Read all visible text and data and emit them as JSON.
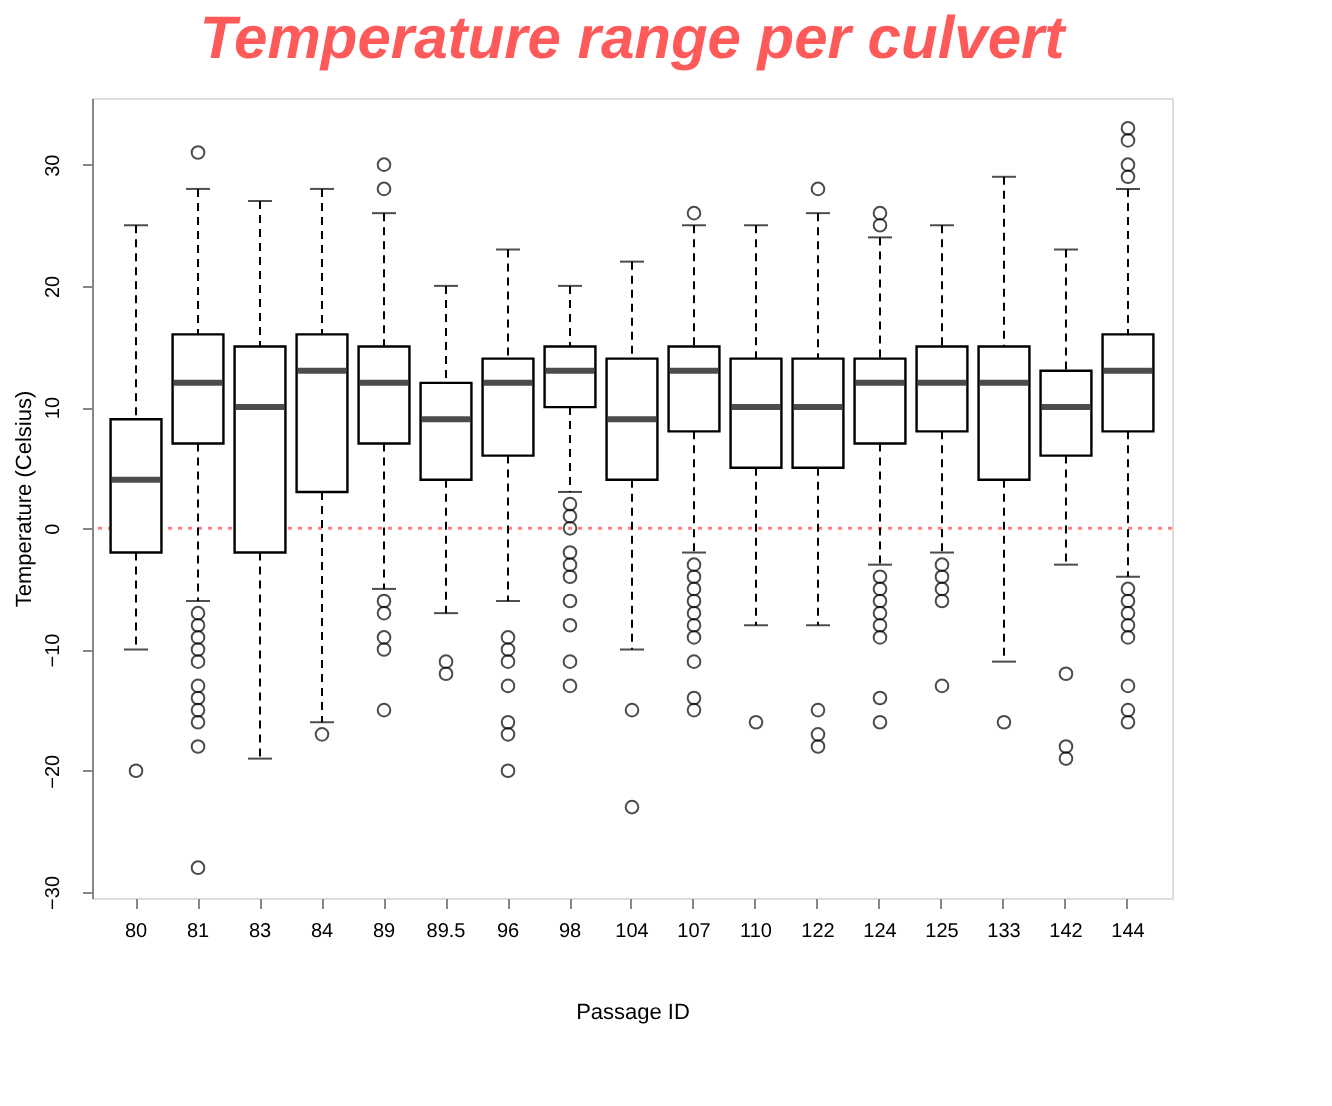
{
  "chart_data": {
    "type": "box",
    "title": "Temperature range per culvert",
    "xlabel": "Passage ID",
    "ylabel": "Temperature (Celsius)",
    "categories": [
      "80",
      "81",
      "83",
      "84",
      "89",
      "89.5",
      "96",
      "98",
      "104",
      "107",
      "110",
      "122",
      "124",
      "125",
      "133",
      "142",
      "144"
    ],
    "boxes": [
      {
        "low": -10,
        "q1": -2,
        "median": 4,
        "q3": 9,
        "high": 25,
        "outliers": [
          -20
        ]
      },
      {
        "low": -6,
        "q1": 7,
        "median": 12,
        "q3": 16,
        "high": 28,
        "outliers": [
          31,
          -7,
          -8,
          -9,
          -10,
          -11,
          -13,
          -14,
          -15,
          -16,
          -18,
          -28
        ]
      },
      {
        "low": -19,
        "q1": -2,
        "median": 10,
        "q3": 15,
        "high": 27
      },
      {
        "low": -16,
        "q1": 3,
        "median": 13,
        "q3": 16,
        "high": 28,
        "outliers": [
          -17
        ]
      },
      {
        "low": -5,
        "q1": 7,
        "median": 12,
        "q3": 15,
        "high": 26,
        "outliers": [
          30,
          28,
          -6,
          -7,
          -9,
          -10,
          -15
        ]
      },
      {
        "low": -7,
        "q1": 4,
        "median": 9,
        "q3": 12,
        "high": 20,
        "outliers": [
          -11,
          -12
        ]
      },
      {
        "low": -6,
        "q1": 6,
        "median": 12,
        "q3": 14,
        "high": 23,
        "outliers": [
          -9,
          -10,
          -11,
          -13,
          -16,
          -17,
          -20
        ]
      },
      {
        "low": 3,
        "q1": 10,
        "median": 13,
        "q3": 15,
        "high": 20,
        "outliers": [
          2,
          1,
          0,
          -2,
          -3,
          -4,
          -6,
          -8,
          -11,
          -13
        ]
      },
      {
        "low": -10,
        "q1": 4,
        "median": 9,
        "q3": 14,
        "high": 22,
        "outliers": [
          -15,
          -23
        ]
      },
      {
        "low": -2,
        "q1": 8,
        "median": 13,
        "q3": 15,
        "high": 25,
        "outliers": [
          26,
          -3,
          -4,
          -5,
          -6,
          -7,
          -8,
          -9,
          -11,
          -14,
          -15
        ]
      },
      {
        "low": -8,
        "q1": 5,
        "median": 10,
        "q3": 14,
        "high": 25,
        "outliers": [
          -16
        ]
      },
      {
        "low": -8,
        "q1": 5,
        "median": 10,
        "q3": 14,
        "high": 26,
        "outliers": [
          28,
          -15,
          -17,
          -18
        ]
      },
      {
        "low": -3,
        "q1": 7,
        "median": 12,
        "q3": 14,
        "high": 24,
        "outliers": [
          26,
          25,
          -4,
          -5,
          -6,
          -7,
          -8,
          -9,
          -14,
          -16
        ]
      },
      {
        "low": -2,
        "q1": 8,
        "median": 12,
        "q3": 15,
        "high": 25,
        "outliers": [
          -3,
          -4,
          -5,
          -6,
          -13
        ]
      },
      {
        "low": -11,
        "q1": 4,
        "median": 12,
        "q3": 15,
        "high": 29,
        "outliers": [
          -16
        ]
      },
      {
        "low": -3,
        "q1": 6,
        "median": 10,
        "q3": 13,
        "high": 23,
        "outliers": [
          -12,
          -18,
          -19
        ]
      },
      {
        "low": -4,
        "q1": 8,
        "median": 13,
        "q3": 16,
        "high": 28,
        "outliers": [
          33,
          32,
          30,
          29,
          -5,
          -6,
          -7,
          -8,
          -9,
          -13,
          -15,
          -16
        ]
      }
    ],
    "ylim": [
      -30.5,
      35.5
    ],
    "yticks": [
      -30,
      -20,
      -10,
      0,
      10,
      20,
      30
    ],
    "ref_lines": [
      {
        "axis": "y",
        "value": 0,
        "color": "#ff8080",
        "line_style": "dotted"
      }
    ],
    "grid": false
  }
}
